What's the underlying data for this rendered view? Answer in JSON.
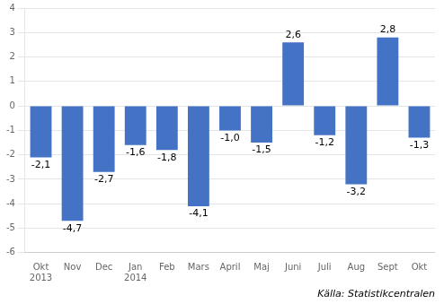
{
  "chart_data": {
    "type": "bar",
    "categories": [
      "Okt",
      "Nov",
      "Dec",
      "Jan",
      "Feb",
      "Mars",
      "April",
      "Maj",
      "Juni",
      "Juli",
      "Aug",
      "Sept",
      "Okt"
    ],
    "values": [
      -2.1,
      -4.7,
      -2.7,
      -1.6,
      -1.8,
      -4.1,
      -1.0,
      -1.5,
      2.6,
      -1.2,
      -3.2,
      2.8,
      -1.3
    ],
    "value_labels": [
      "-2,1",
      "-4,7",
      "-2,7",
      "-1,6",
      "-1,8",
      "-4,1",
      "-1,0",
      "-1,5",
      "2,6",
      "-1,2",
      "-3,2",
      "2,8",
      "-1,3"
    ],
    "color": "#4472C4",
    "ylim": [
      -6,
      4
    ],
    "yticks": [
      -6,
      -5,
      -4,
      -3,
      -2,
      -1,
      0,
      1,
      2,
      3,
      4
    ],
    "grid": true,
    "data_labels": true,
    "annotations": [
      {
        "text": "2013",
        "x": 0
      },
      {
        "text": "2014",
        "x": 3
      },
      {
        "text": "Källa: Statistikcentralen"
      }
    ]
  }
}
